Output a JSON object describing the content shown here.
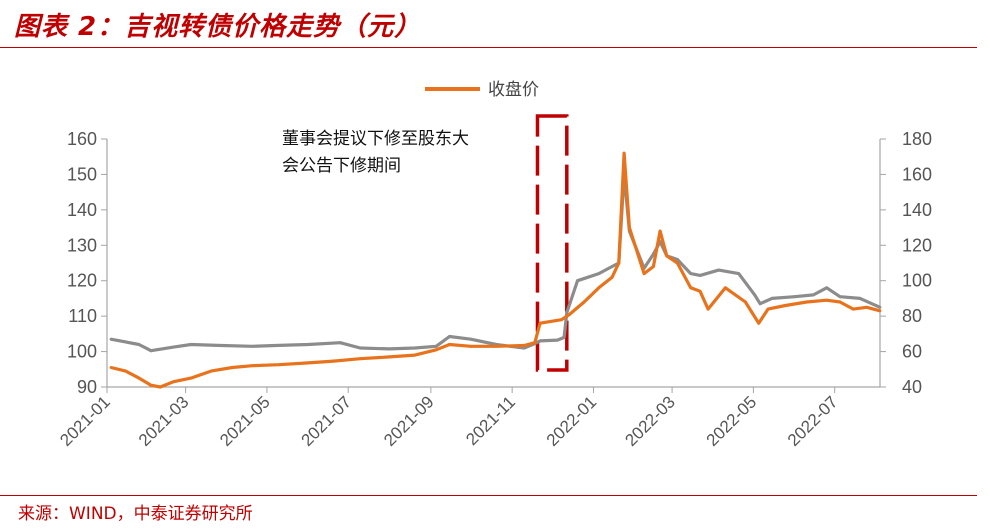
{
  "header": {
    "title": "图表 2：吉视转债价格走势（元）"
  },
  "footer": {
    "source": "来源：WIND，中泰证券研究所"
  },
  "chart_data": {
    "type": "line",
    "legend": {
      "label": "收盘价",
      "position": "top-center"
    },
    "annotation": {
      "lines": [
        "董事会提议下修至股东大",
        "会公告下修期间"
      ],
      "x_start": "2021-11-20",
      "x_end": "2021-12-12"
    },
    "x_axis": {
      "range": [
        "2021-01-01",
        "2022-08-04"
      ],
      "ticks": [
        "2021-01",
        "2021-03",
        "2021-05",
        "2021-07",
        "2021-09",
        "2021-11",
        "2022-01",
        "2022-03",
        "2022-05",
        "2022-07"
      ]
    },
    "y_left": {
      "ylim": [
        90,
        160
      ],
      "ticks": [
        90,
        100,
        110,
        120,
        130,
        140,
        150,
        160
      ]
    },
    "y_right": {
      "ylim": [
        40,
        180
      ],
      "ticks": [
        40,
        60,
        80,
        100,
        120,
        140,
        160,
        180
      ]
    },
    "colors": {
      "close": "#e8731c",
      "stock": "#8c8c8c",
      "annotation": "#c00000",
      "title": "#c00000"
    },
    "series": [
      {
        "name": "收盘价",
        "axis": "left",
        "color": "#e8731c",
        "points": [
          [
            "2021-01-04",
            95.5
          ],
          [
            "2021-01-15",
            94.5
          ],
          [
            "2021-01-25",
            92.5
          ],
          [
            "2021-02-03",
            90.5
          ],
          [
            "2021-02-10",
            90.0
          ],
          [
            "2021-02-20",
            91.5
          ],
          [
            "2021-03-05",
            92.5
          ],
          [
            "2021-03-20",
            94.5
          ],
          [
            "2021-04-05",
            95.5
          ],
          [
            "2021-04-20",
            96.0
          ],
          [
            "2021-05-10",
            96.3
          ],
          [
            "2021-06-01",
            96.8
          ],
          [
            "2021-06-20",
            97.3
          ],
          [
            "2021-07-10",
            98.0
          ],
          [
            "2021-08-01",
            98.5
          ],
          [
            "2021-08-20",
            99.0
          ],
          [
            "2021-09-05",
            100.5
          ],
          [
            "2021-09-15",
            102.0
          ],
          [
            "2021-10-01",
            101.5
          ],
          [
            "2021-10-20",
            101.5
          ],
          [
            "2021-11-10",
            101.7
          ],
          [
            "2021-11-18",
            102.5
          ],
          [
            "2021-11-22",
            108.0
          ],
          [
            "2021-12-08",
            109.0
          ],
          [
            "2021-12-14",
            110.5
          ],
          [
            "2021-12-25",
            114.0
          ],
          [
            "2022-01-05",
            118.0
          ],
          [
            "2022-01-15",
            121.0
          ],
          [
            "2022-01-20",
            125.0
          ],
          [
            "2022-01-24",
            156.0
          ],
          [
            "2022-01-28",
            135.0
          ],
          [
            "2022-02-08",
            122.0
          ],
          [
            "2022-02-15",
            124.0
          ],
          [
            "2022-02-20",
            134.0
          ],
          [
            "2022-02-25",
            127.0
          ],
          [
            "2022-03-05",
            125.0
          ],
          [
            "2022-03-15",
            118.0
          ],
          [
            "2022-03-22",
            117.0
          ],
          [
            "2022-03-28",
            112.0
          ],
          [
            "2022-04-10",
            118.0
          ],
          [
            "2022-04-25",
            114.0
          ],
          [
            "2022-05-05",
            108.0
          ],
          [
            "2022-05-12",
            112.0
          ],
          [
            "2022-05-25",
            113.0
          ],
          [
            "2022-06-10",
            114.0
          ],
          [
            "2022-06-25",
            114.5
          ],
          [
            "2022-07-05",
            114.0
          ],
          [
            "2022-07-15",
            112.0
          ],
          [
            "2022-07-25",
            112.5
          ],
          [
            "2022-08-04",
            111.5
          ]
        ]
      },
      {
        "name": "",
        "axis": "right",
        "color": "#8c8c8c",
        "points": [
          [
            "2021-01-04",
            67.0
          ],
          [
            "2021-01-25",
            64.0
          ],
          [
            "2021-02-03",
            60.5
          ],
          [
            "2021-02-20",
            62.5
          ],
          [
            "2021-03-05",
            64.0
          ],
          [
            "2021-03-25",
            63.5
          ],
          [
            "2021-04-20",
            63.0
          ],
          [
            "2021-05-10",
            63.5
          ],
          [
            "2021-06-01",
            64.0
          ],
          [
            "2021-06-25",
            65.0
          ],
          [
            "2021-07-10",
            62.0
          ],
          [
            "2021-08-01",
            61.5
          ],
          [
            "2021-08-20",
            62.0
          ],
          [
            "2021-09-05",
            63.0
          ],
          [
            "2021-09-15",
            68.5
          ],
          [
            "2021-10-01",
            67.0
          ],
          [
            "2021-10-20",
            64.0
          ],
          [
            "2021-11-10",
            62.0
          ],
          [
            "2021-11-18",
            64.5
          ],
          [
            "2021-11-22",
            66.0
          ],
          [
            "2021-12-05",
            66.5
          ],
          [
            "2021-12-10",
            68.0
          ],
          [
            "2021-12-12",
            82.0
          ],
          [
            "2021-12-20",
            100.0
          ],
          [
            "2021-12-28",
            102.0
          ],
          [
            "2022-01-05",
            104.0
          ],
          [
            "2022-01-15",
            108.0
          ],
          [
            "2022-01-20",
            110.0
          ],
          [
            "2022-01-24",
            160.0
          ],
          [
            "2022-01-28",
            128.0
          ],
          [
            "2022-02-08",
            107.0
          ],
          [
            "2022-02-15",
            115.0
          ],
          [
            "2022-02-20",
            122.0
          ],
          [
            "2022-02-25",
            114.0
          ],
          [
            "2022-03-05",
            112.0
          ],
          [
            "2022-03-15",
            104.0
          ],
          [
            "2022-03-22",
            103.0
          ],
          [
            "2022-04-05",
            106.0
          ],
          [
            "2022-04-20",
            104.0
          ],
          [
            "2022-05-02",
            92.0
          ],
          [
            "2022-05-06",
            87.0
          ],
          [
            "2022-05-15",
            90.0
          ],
          [
            "2022-06-01",
            91.0
          ],
          [
            "2022-06-15",
            92.0
          ],
          [
            "2022-06-25",
            96.0
          ],
          [
            "2022-07-05",
            91.0
          ],
          [
            "2022-07-20",
            90.0
          ],
          [
            "2022-08-04",
            85.0
          ]
        ]
      }
    ]
  }
}
